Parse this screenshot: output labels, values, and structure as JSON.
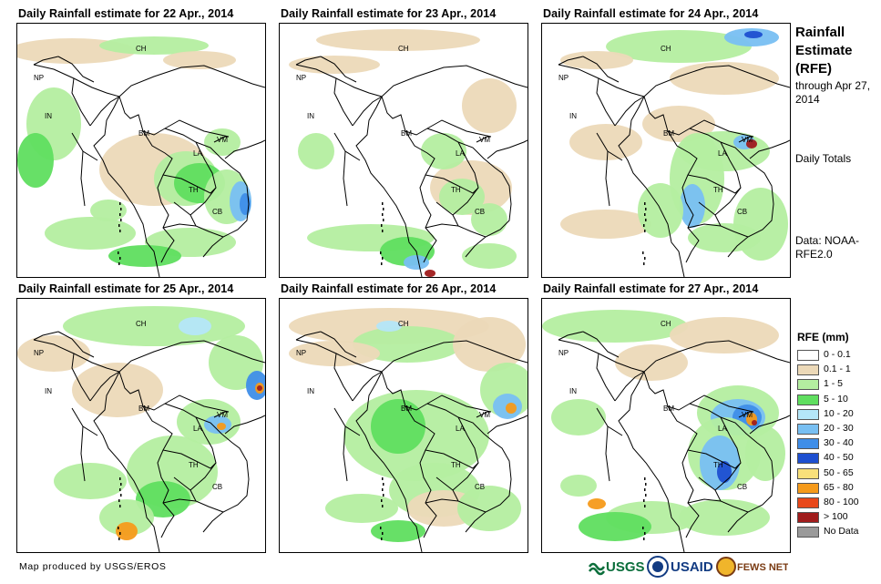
{
  "panels": [
    {
      "title": "Daily Rainfall estimate for 22 Apr., 2014"
    },
    {
      "title": "Daily Rainfall estimate for 23 Apr., 2014"
    },
    {
      "title": "Daily Rainfall estimate for 24 Apr., 2014"
    },
    {
      "title": "Daily Rainfall estimate for 25 Apr., 2014"
    },
    {
      "title": "Daily Rainfall estimate for 26 Apr., 2014"
    },
    {
      "title": "Daily Rainfall estimate for 27 Apr., 2014"
    }
  ],
  "country_labels": {
    "ch": "CH",
    "np": "NP",
    "in": "IN",
    "bm": "BM",
    "la": "LA",
    "vm": "VM",
    "th": "TH",
    "cb": "CB"
  },
  "side": {
    "title": "Rainfall Estimate (RFE)",
    "through": "through Apr 27, 2014",
    "totals": "Daily Totals",
    "data": "Data: NOAA-RFE2.0"
  },
  "legend": {
    "title": "RFE (mm)",
    "items": [
      {
        "label": "0 - 0.1",
        "color": "#ffffff"
      },
      {
        "label": "0.1 - 1",
        "color": "#ecd9b8"
      },
      {
        "label": "1 - 5",
        "color": "#b4eea0"
      },
      {
        "label": "5 - 10",
        "color": "#5fde5f"
      },
      {
        "label": "10 - 20",
        "color": "#b4e6f8"
      },
      {
        "label": "20 - 30",
        "color": "#78bff2"
      },
      {
        "label": "30 - 40",
        "color": "#3f8ee8"
      },
      {
        "label": "40 - 50",
        "color": "#1d4fd0"
      },
      {
        "label": "50 - 65",
        "color": "#f8e07a"
      },
      {
        "label": "65 - 80",
        "color": "#f59a1a"
      },
      {
        "label": "80 - 100",
        "color": "#e8481a"
      },
      {
        "label": "> 100",
        "color": "#a01c1c"
      },
      {
        "label": "No Data",
        "color": "#9a9a9a"
      }
    ]
  },
  "credit": "Map produced by USGS/EROS",
  "logos": {
    "usgs": "USGS",
    "usaid": "USAID",
    "fewsnet": "FEWS NET"
  }
}
